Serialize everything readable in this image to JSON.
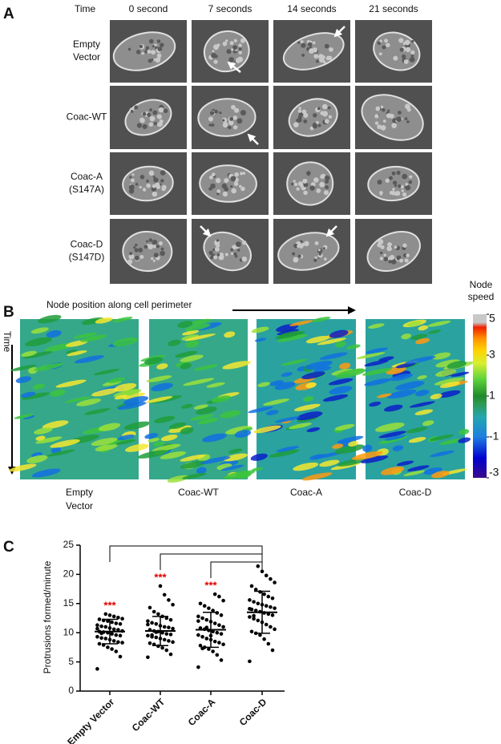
{
  "panel_a": {
    "label": "A",
    "time_label": "Time",
    "columns": [
      "0 second",
      "7 seconds",
      "14 seconds",
      "21 seconds"
    ],
    "rows": [
      [
        "Empty",
        "Vector"
      ],
      [
        "Coac-WT"
      ],
      [
        "Coac-A",
        "(S147A)"
      ],
      [
        "Coac-D",
        "(S147D)"
      ]
    ]
  },
  "panel_b": {
    "label": "B",
    "x_label": "Node position along cell perimeter",
    "y_label": "Time",
    "colorbar": {
      "label": [
        "Node",
        "speed"
      ],
      "lim": [
        -3,
        5
      ],
      "ticks": [
        5,
        3,
        1,
        -1,
        -3
      ]
    },
    "maps": [
      [
        "Empty",
        "Vector"
      ],
      [
        "Coac-WT"
      ],
      [
        "Coac-A"
      ],
      [
        "Coac-D"
      ]
    ]
  },
  "chart_data": {
    "type": "dot",
    "panel_label": "C",
    "y_label": "Protrusions formed/minute",
    "categories": [
      "Empty Vector",
      "Coac-WT",
      "Coac-A",
      "Coac-D"
    ],
    "groups": [
      {
        "values": [
          3.8,
          5.9,
          6.8,
          7.2,
          7.5,
          7.9,
          8.1,
          8.3,
          8.4,
          8.6,
          8.8,
          9.0,
          9.1,
          9.3,
          9.5,
          9.6,
          9.8,
          10.0,
          10.1,
          10.2,
          10.3,
          10.5,
          10.6,
          10.8,
          11.0,
          11.1,
          11.3,
          11.5,
          11.6,
          11.8,
          12.0,
          12.1,
          12.3,
          12.4,
          12.6,
          12.8,
          13.0,
          13.2,
          9.9,
          10.7
        ],
        "mean": 10.2,
        "sd": 2.1,
        "annotation": "***"
      },
      {
        "values": [
          5.8,
          6.3,
          7.0,
          7.4,
          7.7,
          8.0,
          8.2,
          8.4,
          8.6,
          8.8,
          9.0,
          9.2,
          9.3,
          9.5,
          9.7,
          9.8,
          10.0,
          10.2,
          10.3,
          10.5,
          10.7,
          10.9,
          11.0,
          11.2,
          11.5,
          11.7,
          12.0,
          12.2,
          12.5,
          12.8,
          13.2,
          13.6,
          14.3,
          14.8,
          15.6,
          16.5,
          18.0,
          10.1,
          9.6,
          11.4
        ],
        "mean": 10.3,
        "sd": 2.5,
        "annotation": "***"
      },
      {
        "values": [
          4.1,
          5.3,
          6.2,
          6.8,
          7.2,
          7.5,
          7.8,
          8.0,
          8.3,
          8.5,
          8.8,
          9.0,
          9.3,
          9.6,
          9.8,
          10.0,
          10.2,
          10.4,
          10.6,
          10.8,
          11.0,
          11.3,
          11.6,
          11.9,
          12.2,
          12.5,
          12.8,
          13.0,
          13.4,
          13.8,
          14.2,
          14.6,
          15.0,
          15.5,
          16.2,
          16.6,
          9.5,
          10.9,
          7.3,
          12.0
        ],
        "mean": 10.5,
        "sd": 3.0,
        "annotation": "***"
      },
      {
        "values": [
          5.1,
          7.0,
          8.1,
          8.9,
          9.6,
          9.9,
          10.2,
          10.6,
          11.0,
          11.4,
          11.8,
          12.1,
          12.4,
          12.7,
          13.0,
          13.2,
          13.4,
          13.6,
          13.8,
          14.0,
          14.2,
          14.4,
          14.6,
          14.8,
          15.0,
          15.3,
          15.6,
          15.9,
          16.2,
          16.6,
          17.0,
          17.4,
          18.0,
          18.6,
          19.2,
          19.8,
          20.5,
          21.4,
          12.9,
          14.1
        ],
        "mean": 13.5,
        "sd": 3.6
      }
    ],
    "ylim": [
      0,
      25
    ],
    "yticks": [
      0,
      5,
      10,
      15,
      20,
      25
    ]
  }
}
